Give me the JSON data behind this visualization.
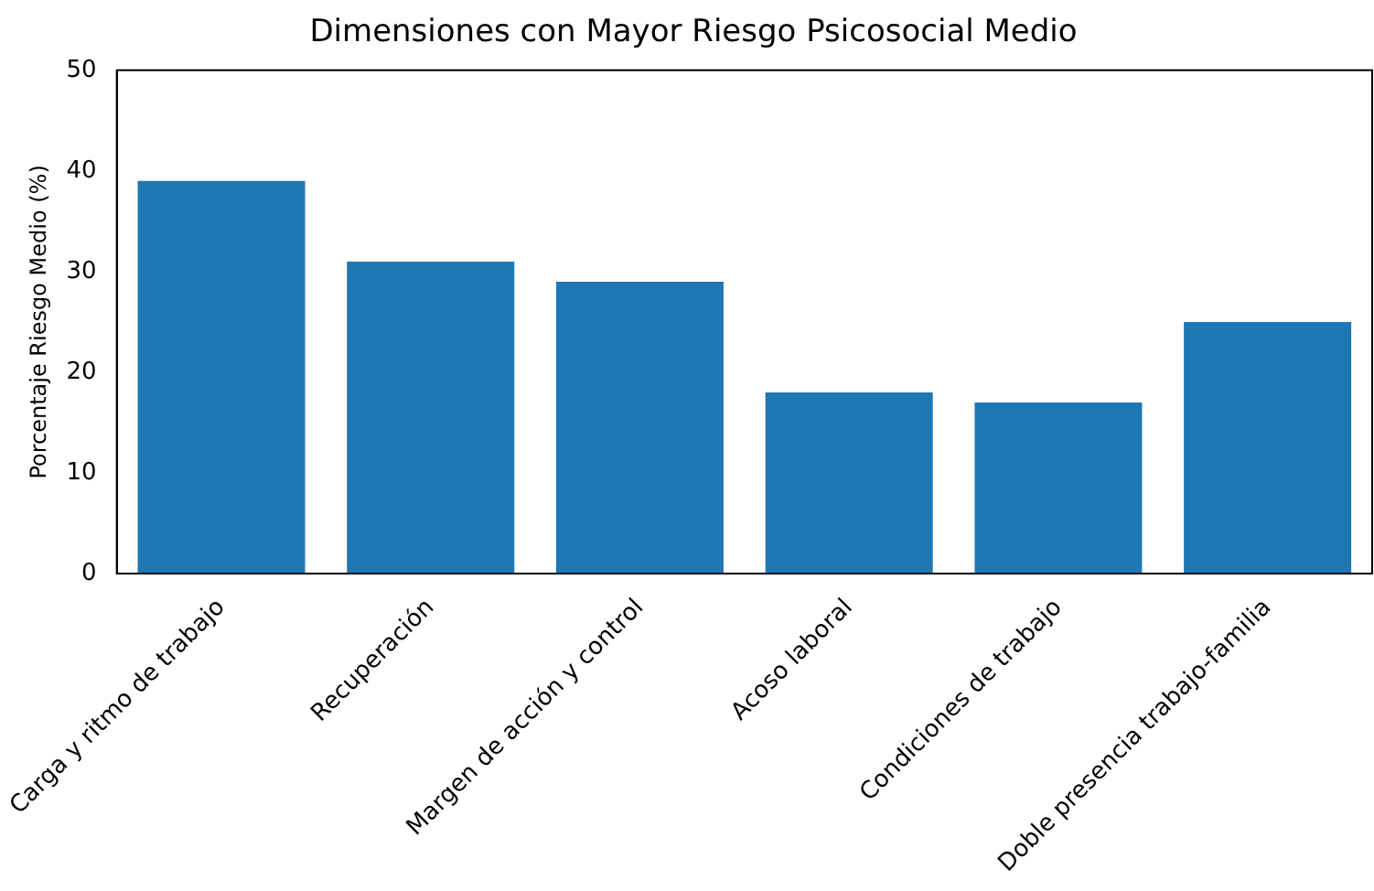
{
  "chart_data": {
    "type": "bar",
    "title": "Dimensiones con Mayor Riesgo Psicosocial Medio",
    "ylabel": "Porcentaje Riesgo Medio (%)",
    "categories": [
      "Carga y ritmo de trabajo",
      "Recuperación",
      "Margen de acción y control",
      "Acoso laboral",
      "Condiciones de trabajo",
      "Doble presencia trabajo-familia"
    ],
    "values": [
      39,
      31,
      29,
      18,
      17,
      25
    ],
    "color": "#1f77b4",
    "ylim": [
      0,
      50
    ],
    "yticks": [
      0,
      10,
      20,
      30,
      40,
      50
    ],
    "grid": false,
    "legend": false
  }
}
